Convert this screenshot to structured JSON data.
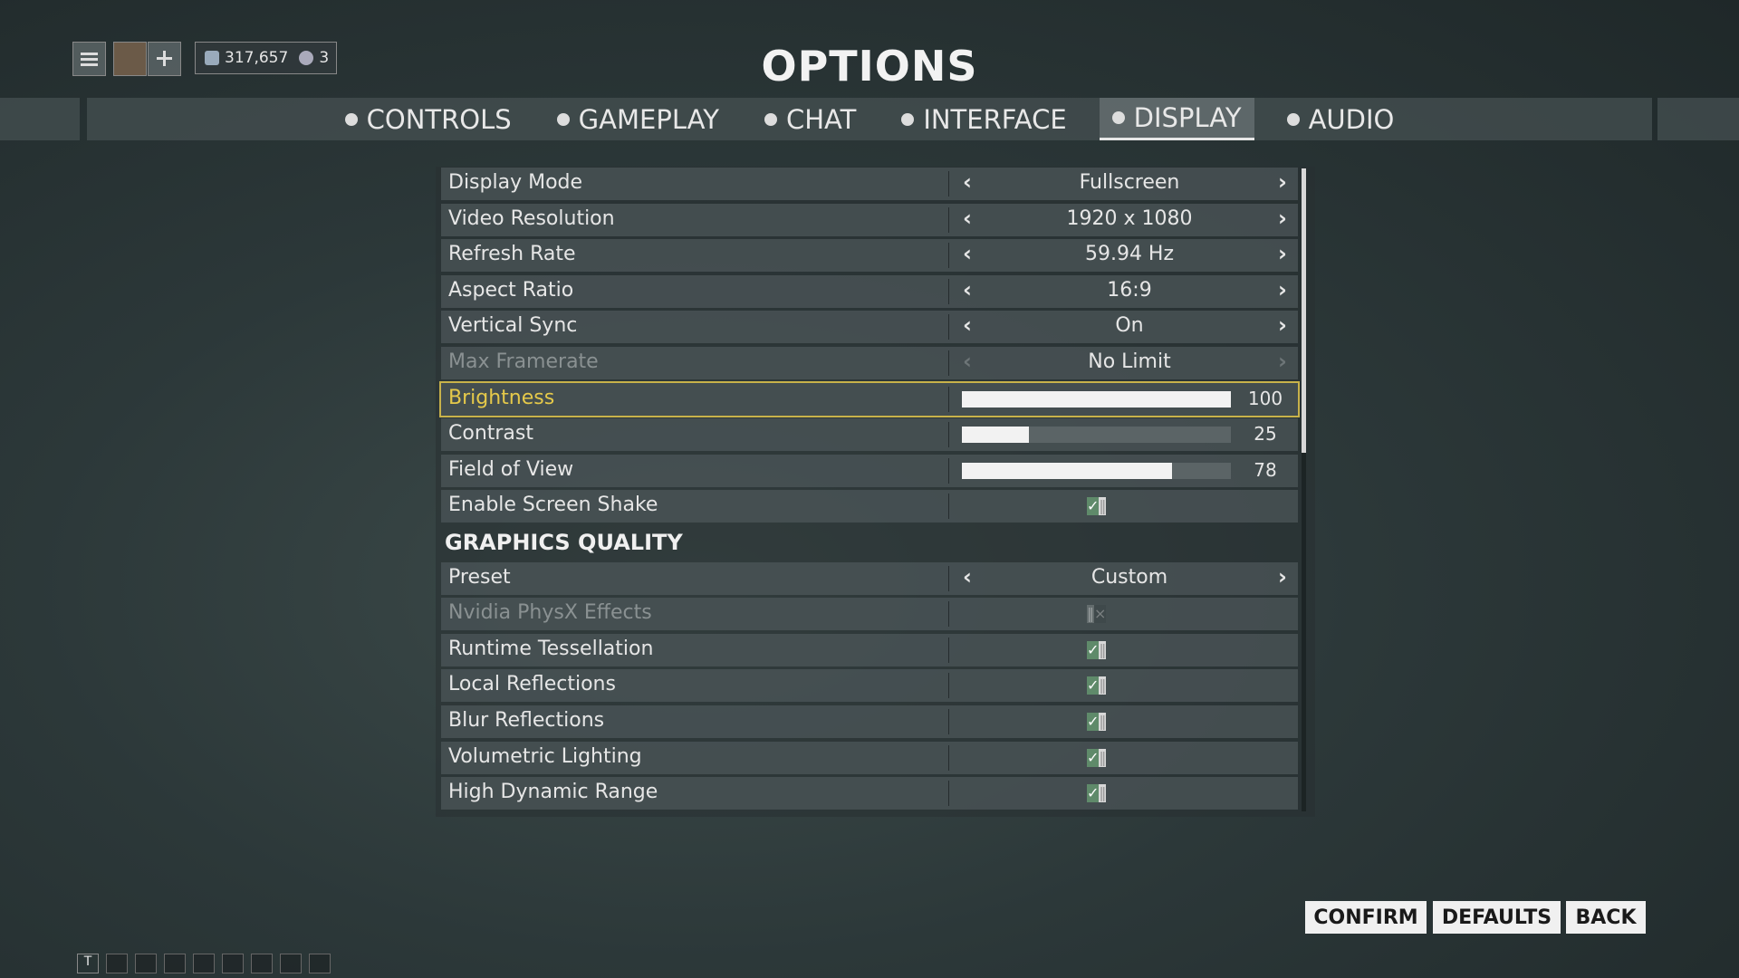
{
  "header": {
    "title": "OPTIONS",
    "credits": "317,657",
    "platinum": "3"
  },
  "tabs": [
    {
      "label": "CONTROLS"
    },
    {
      "label": "GAMEPLAY"
    },
    {
      "label": "CHAT"
    },
    {
      "label": "INTERFACE"
    },
    {
      "label": "DISPLAY",
      "active": true
    },
    {
      "label": "AUDIO"
    }
  ],
  "rows": [
    {
      "label": "Display Mode",
      "kind": "select",
      "value": "Fullscreen"
    },
    {
      "label": "Video Resolution",
      "kind": "select",
      "value": "1920 x 1080"
    },
    {
      "label": "Refresh Rate",
      "kind": "select",
      "value": "59.94 Hz"
    },
    {
      "label": "Aspect Ratio",
      "kind": "select",
      "value": "16:9"
    },
    {
      "label": "Vertical Sync",
      "kind": "select",
      "value": "On"
    },
    {
      "label": "Max Framerate",
      "kind": "select",
      "value": "No Limit",
      "disabled": true
    },
    {
      "label": "Brightness",
      "kind": "slider",
      "value": 100,
      "selected": true
    },
    {
      "label": "Contrast",
      "kind": "slider",
      "value": 25
    },
    {
      "label": "Field of View",
      "kind": "slider",
      "value": 78
    },
    {
      "label": "Enable Screen Shake",
      "kind": "toggle",
      "on": true
    },
    {
      "label": "GRAPHICS QUALITY",
      "kind": "section"
    },
    {
      "label": "Preset",
      "kind": "select",
      "value": "Custom"
    },
    {
      "label": "Nvidia PhysX Effects",
      "kind": "toggle",
      "on": false,
      "disabled": true
    },
    {
      "label": "Runtime Tessellation",
      "kind": "toggle",
      "on": true
    },
    {
      "label": "Local Reflections",
      "kind": "toggle",
      "on": true
    },
    {
      "label": "Blur Reflections",
      "kind": "toggle",
      "on": true
    },
    {
      "label": "Volumetric Lighting",
      "kind": "toggle",
      "on": true
    },
    {
      "label": "High Dynamic Range",
      "kind": "toggle",
      "on": true
    }
  ],
  "buttons": [
    {
      "label": "CONFIRM"
    },
    {
      "label": "DEFAULTS"
    },
    {
      "label": "BACK"
    }
  ],
  "bottom_bar": {
    "first": "T"
  }
}
